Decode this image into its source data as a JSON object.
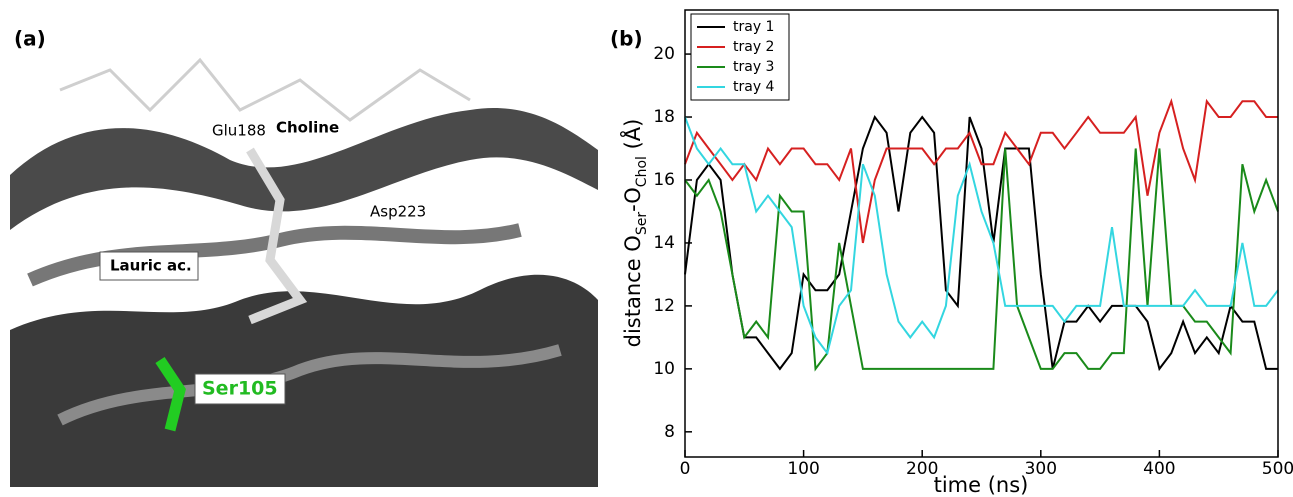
{
  "panel_a": {
    "label": "(a)",
    "annotations": [
      "Glu188",
      "Choline",
      "Asp223",
      "Lauric ac.",
      "Ser105"
    ]
  },
  "chart_data": {
    "type": "line",
    "panel_label": "(b)",
    "xlabel": "time (ns)",
    "ylabel": [
      {
        "text": "distance O"
      },
      {
        "text": "Ser",
        "sub": true
      },
      {
        "text": "-O"
      },
      {
        "text": "Chol",
        "sub": true
      },
      {
        "text": " (Å)"
      }
    ],
    "x": [
      0,
      10,
      20,
      30,
      40,
      50,
      60,
      70,
      80,
      90,
      100,
      110,
      120,
      130,
      140,
      150,
      160,
      170,
      180,
      190,
      200,
      210,
      220,
      230,
      240,
      250,
      260,
      270,
      280,
      290,
      300,
      310,
      320,
      330,
      340,
      350,
      360,
      370,
      380,
      390,
      400,
      410,
      420,
      430,
      440,
      450,
      460,
      470,
      480,
      490,
      500
    ],
    "series": [
      {
        "name": "tray 1",
        "color": "#000000",
        "values": [
          13,
          16,
          16.5,
          16,
          13,
          11,
          11,
          10.5,
          10,
          10.5,
          13,
          12.5,
          12.5,
          13,
          15,
          17,
          18,
          17.5,
          15,
          17.5,
          18,
          17.5,
          12.5,
          12,
          18,
          17,
          14,
          17,
          17,
          17,
          13,
          10,
          11.5,
          11.5,
          12,
          11.5,
          12,
          12,
          12,
          11.5,
          10,
          10.5,
          11.5,
          10.5,
          11,
          10.5,
          12,
          11.5,
          11.5,
          10,
          10
        ]
      },
      {
        "name": "tray 2",
        "color": "#d62020",
        "values": [
          16.5,
          17.5,
          17,
          16.5,
          16,
          16.5,
          16,
          17,
          16.5,
          17,
          17,
          16.5,
          16.5,
          16,
          17,
          14,
          16,
          17,
          17,
          17,
          17,
          16.5,
          17,
          17,
          17.5,
          16.5,
          16.5,
          17.5,
          17,
          16.5,
          17.5,
          17.5,
          17,
          17.5,
          18,
          17.5,
          17.5,
          17.5,
          18,
          15.5,
          17.5,
          18.5,
          17,
          16,
          18.5,
          18,
          18,
          18.5,
          18.5,
          18,
          18
        ]
      },
      {
        "name": "tray 3",
        "color": "#1a8a1a",
        "values": [
          16,
          15.5,
          16,
          15,
          13,
          11,
          11.5,
          11,
          15.5,
          15,
          15,
          10,
          10.5,
          14,
          12,
          10,
          10,
          10,
          10,
          10,
          10,
          10,
          10,
          10,
          10,
          10,
          10,
          17,
          12,
          11,
          10,
          10,
          10.5,
          10.5,
          10,
          10,
          10.5,
          10.5,
          17,
          12,
          17,
          12,
          12,
          11.5,
          11.5,
          11,
          10.5,
          16.5,
          15,
          16,
          15
        ]
      },
      {
        "name": "tray 4",
        "color": "#33d6e0",
        "values": [
          18,
          17,
          16.5,
          17,
          16.5,
          16.5,
          15,
          15.5,
          15,
          14.5,
          12,
          11,
          10.5,
          12,
          12.5,
          16.5,
          15.5,
          13,
          11.5,
          11,
          11.5,
          11,
          12,
          15.5,
          16.5,
          15,
          14,
          12,
          12,
          12,
          12,
          12,
          11.5,
          12,
          12,
          12,
          14.5,
          12,
          12,
          12,
          12,
          12,
          12,
          12.5,
          12,
          12,
          12,
          14,
          12,
          12,
          12.5
        ]
      }
    ],
    "xlim": [
      0,
      500
    ],
    "xticks": [
      0,
      100,
      200,
      300,
      400,
      500
    ],
    "ylim": [
      7.2,
      21.4
    ],
    "yticks": [
      8,
      10,
      12,
      14,
      16,
      18,
      20
    ],
    "legend": "upper left",
    "grid": false
  }
}
